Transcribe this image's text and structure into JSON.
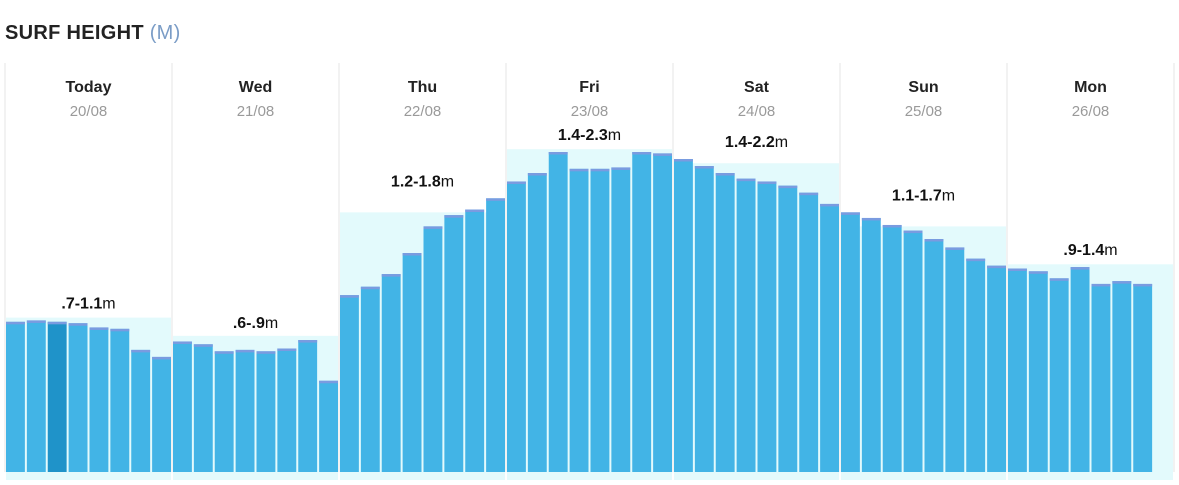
{
  "header": {
    "title": "SURF HEIGHT",
    "unit": "(M)"
  },
  "colors": {
    "bar": "#42b4e6",
    "bar_highlight": "#1f93c9",
    "bar_top": "#7a9be0",
    "band": "#e3fafc",
    "separator": "#e6e6e6"
  },
  "chart_data": {
    "type": "bar",
    "title": "SURF HEIGHT (M)",
    "ylabel": "",
    "ylim": [
      0,
      2.85
    ],
    "days": [
      {
        "name": "Today",
        "date": "20/08",
        "range_num": ".7-1.1",
        "range_unit": "m",
        "band_max": 1.1,
        "values": [
          1.07,
          1.08,
          1.07,
          1.06,
          1.03,
          1.02,
          0.87,
          0.82
        ],
        "highlight_index": 2
      },
      {
        "name": "Wed",
        "date": "21/08",
        "range_num": ".6-.9",
        "range_unit": "m",
        "band_max": 0.97,
        "values": [
          0.93,
          0.91,
          0.86,
          0.87,
          0.86,
          0.88,
          0.94,
          0.65
        ]
      },
      {
        "name": "Thu",
        "date": "22/08",
        "range_num": "1.2-1.8",
        "range_unit": "m",
        "band_max": 1.85,
        "values": [
          1.26,
          1.32,
          1.41,
          1.56,
          1.75,
          1.83,
          1.87,
          1.95
        ]
      },
      {
        "name": "Fri",
        "date": "23/08",
        "range_num": "1.4-2.3",
        "range_unit": "m",
        "band_max": 2.3,
        "values": [
          2.07,
          2.13,
          2.28,
          2.16,
          2.16,
          2.17,
          2.28,
          2.27
        ]
      },
      {
        "name": "Sat",
        "date": "24/08",
        "range_num": "1.4-2.2",
        "range_unit": "m",
        "band_max": 2.2,
        "values": [
          2.23,
          2.18,
          2.13,
          2.09,
          2.07,
          2.04,
          1.99,
          1.91
        ]
      },
      {
        "name": "Sun",
        "date": "25/08",
        "range_num": "1.1-1.7",
        "range_unit": "m",
        "band_max": 1.75,
        "values": [
          1.85,
          1.81,
          1.76,
          1.72,
          1.66,
          1.6,
          1.52,
          1.47
        ]
      },
      {
        "name": "Mon",
        "date": "26/08",
        "range_num": ".9-1.4",
        "range_unit": "m",
        "band_max": 1.48,
        "values": [
          1.45,
          1.43,
          1.38,
          1.46,
          1.34,
          1.36,
          1.34
        ]
      }
    ]
  }
}
